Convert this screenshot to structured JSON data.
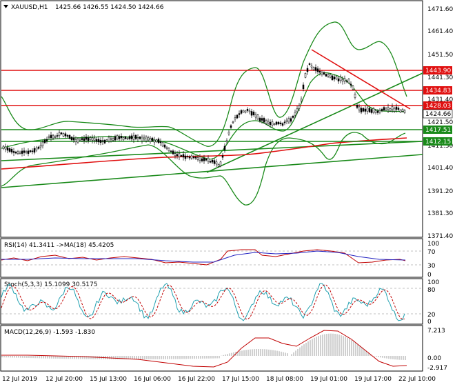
{
  "header": {
    "symbol": "XAUUSD,H1",
    "ohlc": "1425.66 1426.55 1424.50 1424.66"
  },
  "main_panel": {
    "y_ticks": [
      "1471.60",
      "1461.40",
      "1451.50",
      "1441.30",
      "1431.40",
      "1421.50",
      "1411.30",
      "1401.40",
      "1391.20",
      "1381.30",
      "1371.40"
    ],
    "levels": [
      {
        "value": "1443.90",
        "color": "#e01010"
      },
      {
        "value": "1434.83",
        "color": "#e01010"
      },
      {
        "value": "1428.03",
        "color": "#e01010"
      },
      {
        "value": "1424.66",
        "color": "#000000"
      },
      {
        "value": "1417.51",
        "color": "#1a8a1a"
      },
      {
        "value": "1412.15",
        "color": "#1a8a1a"
      }
    ]
  },
  "rsi_panel": {
    "label": "RSI(14) 41.3411  ->MA(18) 45.4205",
    "y_ticks": [
      "100",
      "70",
      "30",
      "0"
    ]
  },
  "stoch_panel": {
    "label": "Stoch(5,3,3) 15.1099 30.5175",
    "y_ticks": [
      "100",
      "80",
      "20",
      "0"
    ]
  },
  "macd_panel": {
    "label": "MACD(12,26,9) -1.593 -1.830",
    "y_ticks": [
      "7.213",
      "0.00",
      "-2.917"
    ]
  },
  "x_axis": {
    "labels": [
      "12 Jul 2019",
      "12 Jul 20:00",
      "15 Jul 13:00",
      "16 Jul 06:00",
      "16 Jul 22:00",
      "17 Jul 15:00",
      "18 Jul 08:00",
      "19 Jul 01:00",
      "19 Jul 17:00",
      "22 Jul 10:00"
    ]
  },
  "colors": {
    "support_line": "#1a8a1a",
    "resistance_line": "#e01010",
    "candles": "#000000",
    "rsi": "#2020c0",
    "rsi_ma": "#c00000",
    "stoch_main": "#20a0b0",
    "stoch_signal": "#c00000",
    "macd_hist": "#a0a0a0",
    "macd_signal": "#c00000"
  }
}
